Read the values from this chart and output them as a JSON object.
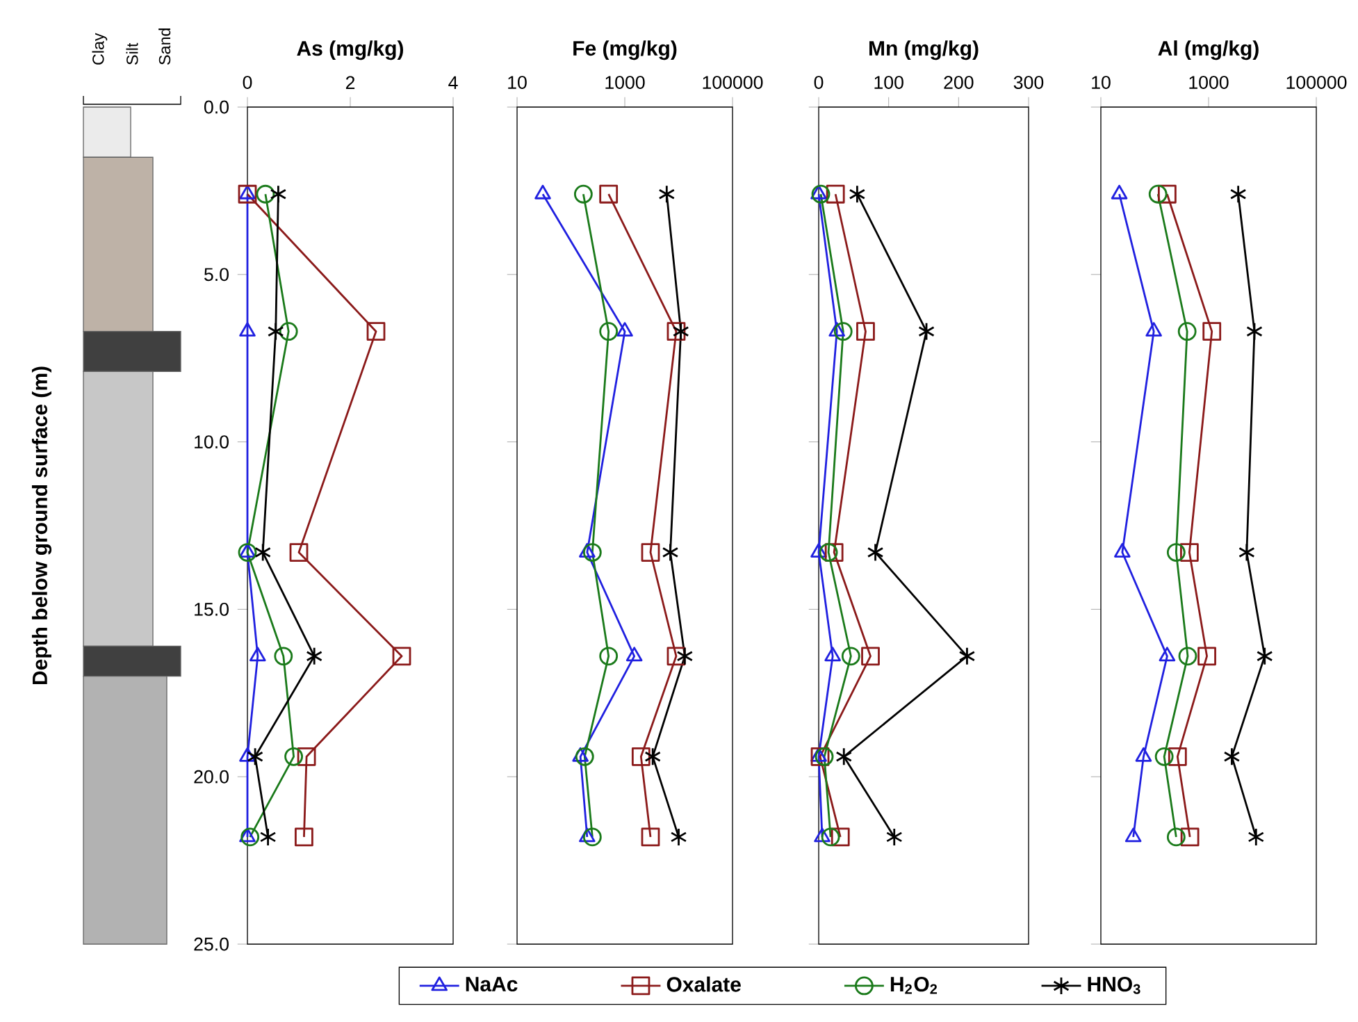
{
  "chart_data": [
    {
      "type": "other",
      "annotations": [
        "Clay",
        "Silt",
        "Sand"
      ]
    },
    {
      "type": "line",
      "title": "As (mg/kg)",
      "ylabel": "Depth below ground surface (m)",
      "xlim": [
        0,
        4
      ],
      "xticks": [
        0,
        2,
        4
      ],
      "ylim": [
        25,
        0
      ],
      "yticks": [
        {
          "value": 0,
          "label": "0.0"
        },
        {
          "value": 5,
          "label": "5.0"
        },
        {
          "value": 10,
          "label": "10.0"
        },
        {
          "value": 15,
          "label": "15.0"
        },
        {
          "value": 20,
          "label": "20.0"
        },
        {
          "value": 25,
          "label": "25.0"
        }
      ],
      "legend": "bottom",
      "series": [
        {
          "name": "NaAc",
          "color": "#2020e0",
          "marker": "triangle",
          "x": [
            0,
            0,
            0,
            0.2,
            0,
            0
          ],
          "values": [
            2.6,
            6.7,
            13.3,
            16.4,
            19.4,
            21.8
          ]
        },
        {
          "name": "Oxalate",
          "color": "#8b1a1a",
          "marker": "square",
          "x": [
            0,
            2.5,
            1.0,
            3.0,
            1.15,
            1.1
          ],
          "values": [
            2.6,
            6.7,
            13.3,
            16.4,
            19.4,
            21.8
          ]
        },
        {
          "name": "H$_{2}$O$_{2}$",
          "color": "#1a7a1a",
          "marker": "circle",
          "x": [
            0.35,
            0.8,
            0,
            0.7,
            0.9,
            0.05
          ],
          "values": [
            2.6,
            6.7,
            13.3,
            16.4,
            19.4,
            21.8
          ]
        },
        {
          "name": "HNO$_{3}$",
          "color": "#000000",
          "marker": "cross",
          "x": [
            0.6,
            0.55,
            0.3,
            1.3,
            0.15,
            0.4
          ],
          "values": [
            2.6,
            6.7,
            13.3,
            16.4,
            19.4,
            21.8
          ]
        }
      ]
    },
    {
      "type": "line",
      "title": "Fe (mg/kg)",
      "log": "x",
      "xlim": [
        10,
        100000
      ],
      "xticks": [
        10,
        1000,
        100000
      ],
      "ylim": [
        25,
        0
      ],
      "yticks": [
        {
          "value": 0,
          "label": null
        },
        {
          "value": 5,
          "label": null
        },
        {
          "value": 10,
          "label": null
        },
        {
          "value": 15,
          "label": null
        },
        {
          "value": 20,
          "label": null
        },
        {
          "value": 25,
          "label": null
        }
      ],
      "tick_labels": "x",
      "series": [
        {
          "color": "#2020e0",
          "marker": "triangle",
          "x": [
            30,
            1000,
            200,
            1500,
            150,
            200
          ],
          "values": [
            2.6,
            6.7,
            13.3,
            16.4,
            19.4,
            21.8
          ]
        },
        {
          "color": "#8b1a1a",
          "marker": "square",
          "x": [
            500,
            9000,
            3000,
            9000,
            2000,
            3000
          ],
          "values": [
            2.6,
            6.7,
            13.3,
            16.4,
            19.4,
            21.8
          ]
        },
        {
          "color": "#1a7a1a",
          "marker": "circle",
          "x": [
            170,
            500,
            250,
            500,
            180,
            250
          ],
          "values": [
            2.6,
            6.7,
            13.3,
            16.4,
            19.4,
            21.8
          ]
        },
        {
          "color": "#000000",
          "marker": "cross",
          "x": [
            6000,
            11000,
            7000,
            13000,
            3300,
            10000
          ],
          "values": [
            2.6,
            6.7,
            13.3,
            16.4,
            19.4,
            21.8
          ]
        }
      ]
    },
    {
      "type": "line",
      "title": "Mn (mg/kg)",
      "xlim": [
        0,
        300
      ],
      "xticks": [
        0,
        100,
        200,
        300
      ],
      "ylim": [
        25,
        0
      ],
      "yticks": [
        {
          "value": 0,
          "label": null
        },
        {
          "value": 5,
          "label": null
        },
        {
          "value": 10,
          "label": null
        },
        {
          "value": 15,
          "label": null
        },
        {
          "value": 20,
          "label": null
        },
        {
          "value": 25,
          "label": null
        }
      ],
      "tick_labels": "x",
      "series": [
        {
          "color": "#2020e0",
          "marker": "triangle",
          "x": [
            0,
            26,
            0,
            20,
            0,
            5
          ],
          "values": [
            2.6,
            6.7,
            13.3,
            16.4,
            19.4,
            21.8
          ]
        },
        {
          "color": "#8b1a1a",
          "marker": "square",
          "x": [
            24,
            67,
            22,
            74,
            2,
            31
          ],
          "values": [
            2.6,
            6.7,
            13.3,
            16.4,
            19.4,
            21.8
          ]
        },
        {
          "color": "#1a7a1a",
          "marker": "circle",
          "x": [
            3,
            35,
            14,
            46,
            8,
            17
          ],
          "values": [
            2.6,
            6.7,
            13.3,
            16.4,
            19.4,
            21.8
          ]
        },
        {
          "color": "#000000",
          "marker": "cross",
          "x": [
            55,
            154,
            81,
            212,
            36,
            108
          ],
          "values": [
            2.6,
            6.7,
            13.3,
            16.4,
            19.4,
            21.8
          ]
        }
      ]
    },
    {
      "type": "line",
      "title": "Al (mg/kg)",
      "log": "x",
      "xlim": [
        10,
        100000
      ],
      "xticks": [
        10,
        1000,
        100000
      ],
      "ylim": [
        25,
        0
      ],
      "yticks": [
        {
          "value": 0,
          "label": null
        },
        {
          "value": 5,
          "label": null
        },
        {
          "value": 10,
          "label": null
        },
        {
          "value": 15,
          "label": null
        },
        {
          "value": 20,
          "label": null
        },
        {
          "value": 25,
          "label": null
        }
      ],
      "tick_labels": "x",
      "series": [
        {
          "color": "#2020e0",
          "marker": "triangle",
          "x": [
            22,
            96,
            25,
            170,
            62,
            40
          ],
          "values": [
            2.6,
            6.7,
            13.3,
            16.4,
            19.4,
            21.8
          ]
        },
        {
          "color": "#8b1a1a",
          "marker": "square",
          "x": [
            170,
            1150,
            440,
            930,
            265,
            450
          ],
          "values": [
            2.6,
            6.7,
            13.3,
            16.4,
            19.4,
            21.8
          ]
        },
        {
          "color": "#1a7a1a",
          "marker": "circle",
          "x": [
            115,
            400,
            250,
            410,
            150,
            250
          ],
          "values": [
            2.6,
            6.7,
            13.3,
            16.4,
            19.4,
            21.8
          ]
        },
        {
          "color": "#000000",
          "marker": "cross",
          "x": [
            3550,
            7100,
            5100,
            11000,
            2700,
            7600
          ],
          "values": [
            2.6,
            6.7,
            13.3,
            16.4,
            19.4,
            21.8
          ]
        }
      ]
    }
  ]
}
